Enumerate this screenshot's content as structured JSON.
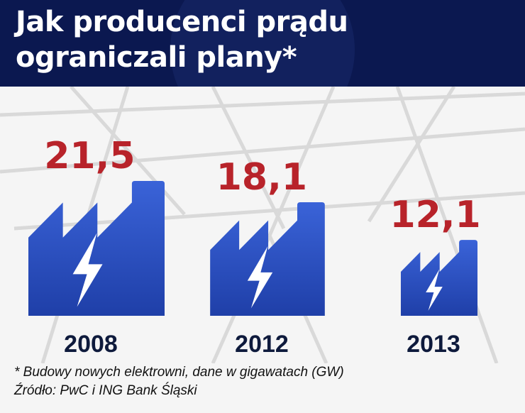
{
  "title": "Jak producenci prądu ograniczali plany*",
  "footnote": "* Budowy nowych elektrowni, dane w gigawatach (GW)",
  "source": "Źródło: PwC i ING Bank Śląski",
  "colors": {
    "header_bg": "#0b1850",
    "value_text": "#b8232a",
    "factory_top": "#3a63d8",
    "factory_bottom": "#1f3fa8",
    "year_text": "#0e1a3c"
  },
  "icon": "factory-lightning-icon",
  "chart_data": {
    "type": "bar",
    "categories": [
      "2008",
      "2012",
      "2013"
    ],
    "values": [
      21.5,
      18.1,
      12.1
    ],
    "value_labels": [
      "21,5",
      "18,1",
      "12,1"
    ],
    "title": "Jak producenci prądu ograniczali plany*",
    "xlabel": "",
    "ylabel": "",
    "unit": "GW"
  }
}
